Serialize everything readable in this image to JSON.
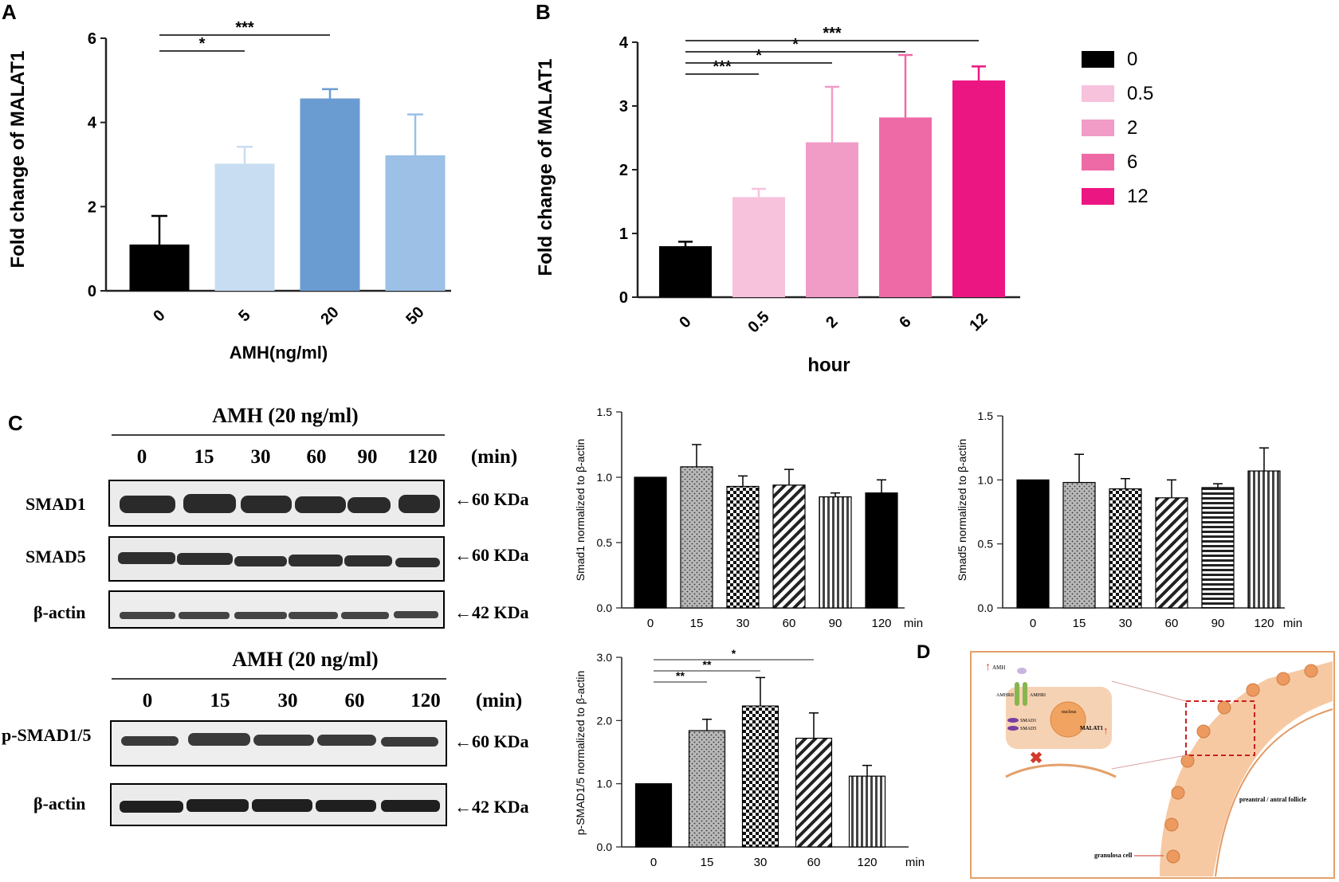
{
  "panel_labels": {
    "a": "A",
    "b": "B",
    "c": "C",
    "d": "D"
  },
  "colors": {
    "axis": "#222222",
    "panelA": [
      "#000000",
      "#c8ddf2",
      "#6a9cd2",
      "#9cc0e6"
    ],
    "panelB": [
      "#000000",
      "#f7c2dc",
      "#f19cc7",
      "#ee6aa6",
      "#ec1683"
    ],
    "gray": "#999999",
    "follicle": "#f6c9a3",
    "cell": "#ec9a5f",
    "frame": "#e3a06a",
    "dashed_box": "#c8201f"
  },
  "chart_data": [
    {
      "id": "A",
      "type": "bar",
      "title": "",
      "xlabel": "AMH(ng/ml)",
      "ylabel": "Fold change of MALAT1",
      "categories": [
        "0",
        "5",
        "20",
        "50"
      ],
      "values": [
        1.1,
        3.02,
        4.57,
        3.22
      ],
      "errors": [
        0.68,
        0.4,
        0.22,
        0.97
      ],
      "ylim": [
        0,
        6
      ],
      "yticks": [
        0,
        2,
        4,
        6
      ],
      "ytick_labels": [
        "0",
        "2",
        "4",
        "6"
      ],
      "significance": [
        {
          "from": 0,
          "to": 1,
          "label": "*"
        },
        {
          "from": 0,
          "to": 2,
          "label": "***"
        }
      ]
    },
    {
      "id": "B",
      "type": "bar",
      "title": "",
      "xlabel": "hour",
      "ylabel": "Fold change of MALAT1",
      "categories": [
        "0",
        "0.5",
        "2",
        "6",
        "12"
      ],
      "values": [
        0.8,
        1.57,
        2.43,
        2.82,
        3.4
      ],
      "errors": [
        0.07,
        0.13,
        0.87,
        0.98,
        0.22
      ],
      "ylim": [
        0,
        4
      ],
      "yticks": [
        0,
        1,
        2,
        3,
        4
      ],
      "ytick_labels": [
        "0",
        "1",
        "2",
        "3",
        "4"
      ],
      "legend": {
        "position": "right",
        "entries": [
          "0",
          "0.5",
          "2",
          "6",
          "12"
        ]
      },
      "significance": [
        {
          "from": 0,
          "to": 1,
          "label": "***"
        },
        {
          "from": 0,
          "to": 2,
          "label": "*"
        },
        {
          "from": 0,
          "to": 3,
          "label": "*"
        },
        {
          "from": 0,
          "to": 4,
          "label": "***"
        }
      ]
    },
    {
      "id": "C-smad1",
      "type": "bar",
      "title": "",
      "xlabel": "min",
      "ylabel": "Smad1 normalized to β-actin",
      "categories": [
        "0",
        "15",
        "30",
        "60",
        "90",
        "120"
      ],
      "values": [
        1.0,
        1.08,
        0.93,
        0.94,
        0.85,
        0.88
      ],
      "errors": [
        0.0,
        0.17,
        0.08,
        0.12,
        0.03,
        0.1
      ],
      "patterns": [
        "solid",
        "dots",
        "checker",
        "diagonal",
        "vertical",
        "solid"
      ],
      "ylim": [
        0,
        1.5
      ],
      "yticks": [
        0,
        0.5,
        1,
        1.5
      ],
      "ytick_labels": [
        "0.0",
        "0.5",
        "1.0",
        "1.5"
      ],
      "significance": []
    },
    {
      "id": "C-smad5",
      "type": "bar",
      "title": "",
      "xlabel": "min",
      "ylabel": "Smad5 normalized to β-actin",
      "categories": [
        "0",
        "15",
        "30",
        "60",
        "90",
        "120"
      ],
      "values": [
        1.0,
        0.98,
        0.93,
        0.86,
        0.94,
        1.07
      ],
      "errors": [
        0.0,
        0.22,
        0.08,
        0.14,
        0.03,
        0.18
      ],
      "patterns": [
        "solid",
        "dots",
        "checker",
        "diagonal",
        "horizontal",
        "vertical"
      ],
      "ylim": [
        0,
        1.5
      ],
      "yticks": [
        0,
        0.5,
        1,
        1.5
      ],
      "ytick_labels": [
        "0.0",
        "0.5",
        "1.0",
        "1.5"
      ],
      "significance": []
    },
    {
      "id": "C-psmad",
      "type": "bar",
      "title": "",
      "xlabel": "min",
      "ylabel": "p-SMAD1/5 normalized to β-actin",
      "categories": [
        "0",
        "15",
        "30",
        "60",
        "120"
      ],
      "values": [
        1.0,
        1.84,
        2.23,
        1.72,
        1.12
      ],
      "errors": [
        0.0,
        0.18,
        0.45,
        0.4,
        0.17
      ],
      "patterns": [
        "solid",
        "dots",
        "checker",
        "diagonal",
        "vertical"
      ],
      "ylim": [
        0,
        3
      ],
      "yticks": [
        0,
        1,
        2,
        3
      ],
      "ytick_labels": [
        "0.0",
        "1.0",
        "2.0",
        "3.0"
      ],
      "significance": [
        {
          "from": 0,
          "to": 1,
          "label": "**"
        },
        {
          "from": 0,
          "to": 2,
          "label": "**"
        },
        {
          "from": 0,
          "to": 3,
          "label": "*"
        }
      ]
    }
  ],
  "western_blot_1": {
    "title": "AMH (20 ng/ml)",
    "times": [
      "0",
      "15",
      "30",
      "60",
      "90",
      "120"
    ],
    "unit": "(min)",
    "rows": [
      {
        "label": "SMAD1",
        "size": "←60 KDa"
      },
      {
        "label": "SMAD5",
        "size": "←60 KDa"
      },
      {
        "label": "β-actin",
        "size": "←42 KDa"
      }
    ]
  },
  "western_blot_2": {
    "title": "AMH (20 ng/ml)",
    "times": [
      "0",
      "15",
      "30",
      "60",
      "120"
    ],
    "unit": "(min)",
    "rows": [
      {
        "label": "p-SMAD1/5",
        "size": "←60 KDa"
      },
      {
        "label": "β-actin",
        "size": "←42 KDa"
      }
    ]
  },
  "diagram_d": {
    "amh": "AMH",
    "receptor_2": "AMHRII",
    "receptor_1": "AMHRI",
    "smad1": "SMAD1",
    "smad5": "SMAD5",
    "nucleus": "nucleus",
    "malat1": "MALAT1",
    "follicle": "preantral / antral follicle",
    "granulosa": "granulosa cell"
  }
}
